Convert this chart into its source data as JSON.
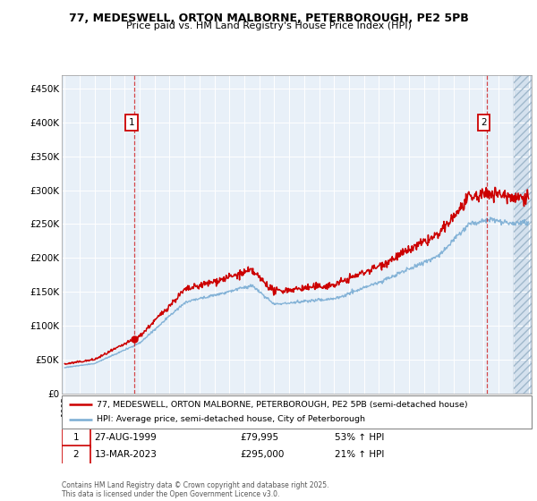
{
  "title": "77, MEDESWELL, ORTON MALBORNE, PETERBOROUGH, PE2 5PB",
  "subtitle": "Price paid vs. HM Land Registry's House Price Index (HPI)",
  "bg_color": "#e8f0f8",
  "red_line_color": "#cc0000",
  "blue_line_color": "#7aadd4",
  "annotation1": {
    "label": "1",
    "date": "27-AUG-1999",
    "price": 79995,
    "note": "53% ↑ HPI"
  },
  "annotation2": {
    "label": "2",
    "date": "13-MAR-2023",
    "price": 295000,
    "note": "21% ↑ HPI"
  },
  "legend_line1": "77, MEDESWELL, ORTON MALBORNE, PETERBOROUGH, PE2 5PB (semi-detached house)",
  "legend_line2": "HPI: Average price, semi-detached house, City of Peterborough",
  "footer": "Contains HM Land Registry data © Crown copyright and database right 2025.\nThis data is licensed under the Open Government Licence v3.0.",
  "ylabel_ticks": [
    "£0",
    "£50K",
    "£100K",
    "£150K",
    "£200K",
    "£250K",
    "£300K",
    "£350K",
    "£400K",
    "£450K"
  ],
  "ylim": [
    0,
    470000
  ],
  "xlim_start": 1994.8,
  "xlim_end": 2026.2,
  "sale1_year": 1999.65,
  "sale1_price": 79995,
  "sale2_year": 2023.2,
  "sale2_price": 295000,
  "hatch_start": 2025.0
}
